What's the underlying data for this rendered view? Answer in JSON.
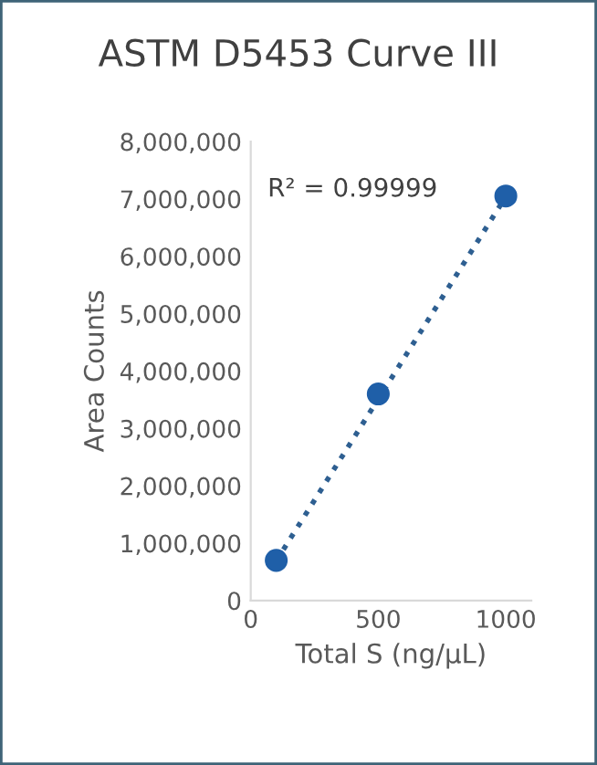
{
  "chart_data": {
    "type": "scatter",
    "title": "ASTM D5453 Curve III",
    "xlabel": "Total S (ng/µL)",
    "ylabel": "Area Counts",
    "series": [
      {
        "color": "#1f5fa8",
        "x": [
          100,
          500,
          1000
        ],
        "values": [
          700000,
          3600000,
          7050000
        ],
        "marker": "circle"
      },
      {
        "type": "line",
        "color": "#2e5f91",
        "x": [
          100,
          1000
        ],
        "values": [
          690000,
          7040000
        ],
        "line_style": "dotted",
        "marker": "none"
      }
    ],
    "annotations": [
      "R² = 0.99999"
    ],
    "xlim": [
      0,
      1100
    ],
    "xticks": [
      0,
      500,
      1000
    ],
    "ylim": [
      0,
      8000000
    ],
    "yticks": [
      {
        "value": 0,
        "label": "0"
      },
      {
        "value": 1000000,
        "label": "1,000,000"
      },
      {
        "value": 2000000,
        "label": "2,000,000"
      },
      {
        "value": 3000000,
        "label": "3,000,000"
      },
      {
        "value": 4000000,
        "label": "4,000,000"
      },
      {
        "value": 5000000,
        "label": "5,000,000"
      },
      {
        "value": 6000000,
        "label": "6,000,000"
      },
      {
        "value": 7000000,
        "label": "7,000,000"
      },
      {
        "value": 8000000,
        "label": "8,000,000"
      }
    ],
    "grid": false,
    "legend": false
  }
}
